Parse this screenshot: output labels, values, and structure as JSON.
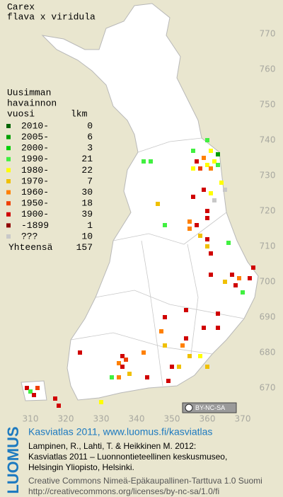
{
  "title": [
    "Carex",
    "flava x viridula"
  ],
  "legend": {
    "heading": [
      "Uusimman",
      "havainnon",
      "vuosi"
    ],
    "count_heading": "lkm",
    "entries": [
      {
        "label": "2010-",
        "count": 0,
        "color": "#006400"
      },
      {
        "label": "2005-",
        "count": 6,
        "color": "#00a000"
      },
      {
        "label": "2000-",
        "count": 3,
        "color": "#00d000"
      },
      {
        "label": "1990-",
        "count": 21,
        "color": "#40f040"
      },
      {
        "label": "1980-",
        "count": 22,
        "color": "#ffff00"
      },
      {
        "label": "1970-",
        "count": 7,
        "color": "#f0c000"
      },
      {
        "label": "1960-",
        "count": 30,
        "color": "#ff8000"
      },
      {
        "label": "1950-",
        "count": 18,
        "color": "#f04000"
      },
      {
        "label": "1900-",
        "count": 39,
        "color": "#d00000"
      },
      {
        "label": "-1899",
        "count": 1,
        "color": "#900000"
      },
      {
        "label": "???",
        "count": 10,
        "color": "#c8c8c8"
      }
    ],
    "total_label": "Yhteensä",
    "total": 157
  },
  "grid": {
    "yticks": [
      770,
      760,
      750,
      740,
      730,
      720,
      710,
      700,
      690,
      680,
      670
    ],
    "xticks": [
      310,
      320,
      330,
      340,
      350,
      360,
      370
    ]
  },
  "observations": [
    {
      "x": 360,
      "y": 740,
      "period": "1990-"
    },
    {
      "x": 356,
      "y": 737,
      "period": "1990-"
    },
    {
      "x": 361,
      "y": 737,
      "period": "1980-"
    },
    {
      "x": 363,
      "y": 736,
      "period": "2005-"
    },
    {
      "x": 359,
      "y": 735,
      "period": "1960-"
    },
    {
      "x": 357,
      "y": 734,
      "period": "1900-"
    },
    {
      "x": 360,
      "y": 733,
      "period": "1980-"
    },
    {
      "x": 362,
      "y": 734,
      "period": "1980-"
    },
    {
      "x": 356,
      "y": 732,
      "period": "1980-"
    },
    {
      "x": 358,
      "y": 732,
      "period": "1950-"
    },
    {
      "x": 361,
      "y": 732,
      "period": "1960-"
    },
    {
      "x": 363,
      "y": 733,
      "period": "1990-"
    },
    {
      "x": 344,
      "y": 734,
      "period": "1990-"
    },
    {
      "x": 342,
      "y": 734,
      "period": "1990-"
    },
    {
      "x": 364,
      "y": 728,
      "period": "1980-"
    },
    {
      "x": 361,
      "y": 725,
      "period": "1980-"
    },
    {
      "x": 359,
      "y": 726,
      "period": "1900-"
    },
    {
      "x": 365,
      "y": 726,
      "period": "???"
    },
    {
      "x": 356,
      "y": 724,
      "period": "1900-"
    },
    {
      "x": 362,
      "y": 723,
      "period": "???"
    },
    {
      "x": 346,
      "y": 722,
      "period": "1970-"
    },
    {
      "x": 360,
      "y": 720,
      "period": "1900-"
    },
    {
      "x": 360,
      "y": 718,
      "period": "1900-"
    },
    {
      "x": 348,
      "y": 716,
      "period": "1990-"
    },
    {
      "x": 355,
      "y": 717,
      "period": "1960-"
    },
    {
      "x": 355,
      "y": 715,
      "period": "1960-"
    },
    {
      "x": 357,
      "y": 716,
      "period": "1900-"
    },
    {
      "x": 358,
      "y": 713,
      "period": "1970-"
    },
    {
      "x": 360,
      "y": 712,
      "period": "1900-"
    },
    {
      "x": 366,
      "y": 711,
      "period": "1990-"
    },
    {
      "x": 360,
      "y": 710,
      "period": "1970-"
    },
    {
      "x": 361,
      "y": 708,
      "period": "1900-"
    },
    {
      "x": 373,
      "y": 704,
      "period": "1900-"
    },
    {
      "x": 367,
      "y": 702,
      "period": "1900-"
    },
    {
      "x": 369,
      "y": 701,
      "period": "1960-"
    },
    {
      "x": 365,
      "y": 700,
      "period": "1970-"
    },
    {
      "x": 372,
      "y": 701,
      "period": "1900-"
    },
    {
      "x": 361,
      "y": 702,
      "period": "1900-"
    },
    {
      "x": 368,
      "y": 699,
      "period": "1900-"
    },
    {
      "x": 370,
      "y": 697,
      "period": "1990-"
    },
    {
      "x": 363,
      "y": 691,
      "period": "1900-"
    },
    {
      "x": 354,
      "y": 692,
      "period": "1900-"
    },
    {
      "x": 348,
      "y": 690,
      "period": "1900-"
    },
    {
      "x": 359,
      "y": 687,
      "period": "1900-"
    },
    {
      "x": 363,
      "y": 687,
      "period": "1900-"
    },
    {
      "x": 354,
      "y": 684,
      "period": "1900-"
    },
    {
      "x": 353,
      "y": 682,
      "period": "1960-"
    },
    {
      "x": 347,
      "y": 686,
      "period": "1960-"
    },
    {
      "x": 342,
      "y": 680,
      "period": "1960-"
    },
    {
      "x": 348,
      "y": 682,
      "period": "1970-"
    },
    {
      "x": 355,
      "y": 679,
      "period": "1970-"
    },
    {
      "x": 352,
      "y": 676,
      "period": "1970-"
    },
    {
      "x": 350,
      "y": 676,
      "period": "1900-"
    },
    {
      "x": 358,
      "y": 679,
      "period": "1980-"
    },
    {
      "x": 360,
      "y": 676,
      "period": "1970-"
    },
    {
      "x": 324,
      "y": 680,
      "period": "1900-"
    },
    {
      "x": 336,
      "y": 679,
      "period": "1900-"
    },
    {
      "x": 337,
      "y": 678,
      "period": "1950-"
    },
    {
      "x": 335,
      "y": 677,
      "period": "1960-"
    },
    {
      "x": 336,
      "y": 676,
      "period": "1900-"
    },
    {
      "x": 333,
      "y": 673,
      "period": "1990-"
    },
    {
      "x": 335,
      "y": 673,
      "period": "1960-"
    },
    {
      "x": 338,
      "y": 674,
      "period": "1970-"
    },
    {
      "x": 343,
      "y": 673,
      "period": "1900-"
    },
    {
      "x": 349,
      "y": 672,
      "period": "1900-"
    },
    {
      "x": 330,
      "y": 666,
      "period": "1980-"
    },
    {
      "x": 309,
      "y": 670,
      "period": "1900-"
    },
    {
      "x": 310,
      "y": 669,
      "period": "1990-"
    },
    {
      "x": 312,
      "y": 670,
      "period": "1950-"
    },
    {
      "x": 311,
      "y": 668,
      "period": "1900-"
    },
    {
      "x": 317,
      "y": 667,
      "period": "1900-"
    },
    {
      "x": 318,
      "y": 665,
      "period": "1900-"
    }
  ],
  "license_badge": "BY-NC-SA",
  "footer": {
    "brand": "LUOMUS",
    "link": "Kasviatlas 2011, www.luomus.fi/kasviatlas",
    "citation": [
      "Lampinen, R., Lahti, T. & Heikkinen M. 2012:",
      "Kasviatlas 2011 – Luonnontieteellinen keskusmuseo,",
      "Helsingin Yliopisto, Helsinki."
    ],
    "license": [
      "Creative Commons Nimeä-Epäkaupallinen-Tarttuva 1.0 Suomi",
      "http://creativecommons.org/licenses/by-nc-sa/1.0/fi"
    ]
  }
}
